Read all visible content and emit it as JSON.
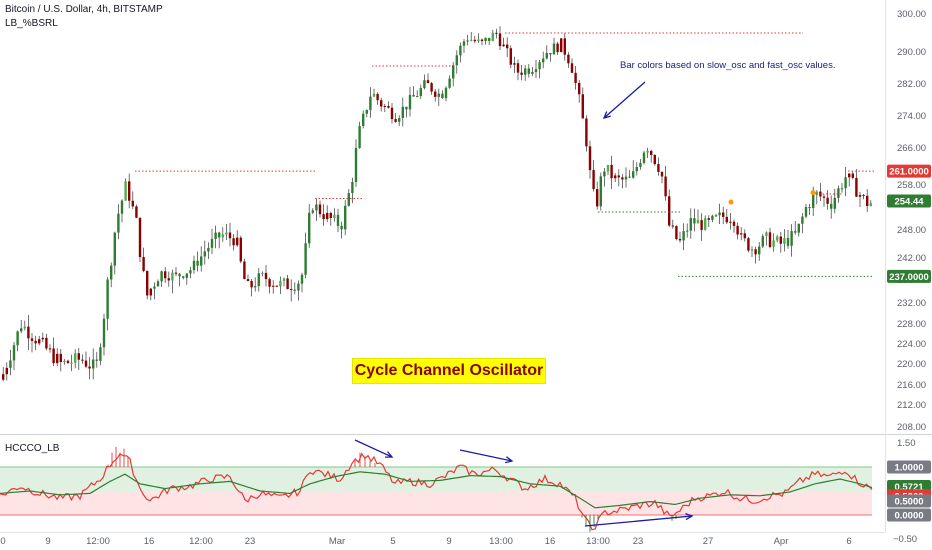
{
  "header": {
    "symbol_line": "Bitcoin / U.S. Dollar, 4h, BITSTAMP",
    "indicator_line": "LB_%BSRL",
    "osc_label": "HCCCO_LB"
  },
  "title_banner": "Cycle Channel Oscillator",
  "annotation": "Bar colors based on slow_osc and fast_osc values.",
  "colors": {
    "up": "#2e7d32",
    "down": "#8b0000",
    "neutral": "#4caf50",
    "red_level": "#e53935",
    "green_level": "#2e7d32",
    "arrow": "#1a1aa6",
    "fast_osc": "#e53935",
    "slow_osc": "#2e7d32",
    "upper_band": "#c8e6c9",
    "lower_band": "#ffcdd2"
  },
  "chart_data": [
    {
      "type": "candlestick",
      "title": "Bitcoin / U.S. Dollar, 4h, BITSTAMP",
      "x_ticks": [
        "9",
        "12:00",
        "16",
        "12:00",
        "23",
        "Mar",
        "5",
        "9",
        "13:00",
        "16",
        "13:00",
        "23",
        "27",
        "Apr",
        "6"
      ],
      "y_ticks": [
        300.0,
        290.0,
        282.0,
        274.0,
        266.0,
        258.0,
        248.0,
        242.0,
        236.0,
        232.0,
        228.0,
        224.0,
        220.0,
        216.0,
        212.0,
        208.0
      ],
      "ylim": [
        207,
        302
      ],
      "price_badges": [
        {
          "label": "261.0000",
          "value": 261.0,
          "color": "#e53935"
        },
        {
          "label": "254.44",
          "value": 254.44,
          "color": "#2e7d32"
        },
        {
          "label": "237.0000",
          "value": 237.0,
          "color": "#2e7d32"
        }
      ],
      "close_path": [
        [
          0,
          217
        ],
        [
          20,
          228
        ],
        [
          40,
          224
        ],
        [
          60,
          220
        ],
        [
          80,
          221
        ],
        [
          95,
          219
        ],
        [
          105,
          233
        ],
        [
          115,
          250
        ],
        [
          125,
          258
        ],
        [
          135,
          250
        ],
        [
          145,
          233
        ],
        [
          160,
          238
        ],
        [
          175,
          237
        ],
        [
          190,
          239
        ],
        [
          205,
          244
        ],
        [
          220,
          247
        ],
        [
          235,
          246
        ],
        [
          245,
          234
        ],
        [
          260,
          237
        ],
        [
          280,
          235
        ],
        [
          300,
          236
        ],
        [
          310,
          254
        ],
        [
          325,
          251
        ],
        [
          340,
          249
        ],
        [
          350,
          258
        ],
        [
          358,
          270
        ],
        [
          370,
          280
        ],
        [
          380,
          277
        ],
        [
          395,
          274
        ],
        [
          410,
          278
        ],
        [
          425,
          282
        ],
        [
          440,
          279
        ],
        [
          455,
          289
        ],
        [
          465,
          294
        ],
        [
          480,
          292
        ],
        [
          495,
          295
        ],
        [
          505,
          290
        ],
        [
          515,
          285
        ],
        [
          530,
          286
        ],
        [
          545,
          290
        ],
        [
          560,
          292
        ],
        [
          570,
          287
        ],
        [
          578,
          278
        ],
        [
          585,
          268
        ],
        [
          590,
          258
        ],
        [
          595,
          253
        ],
        [
          602,
          262
        ],
        [
          615,
          259
        ],
        [
          630,
          259
        ],
        [
          645,
          267
        ],
        [
          660,
          261
        ],
        [
          668,
          249
        ],
        [
          678,
          245
        ],
        [
          690,
          250
        ],
        [
          705,
          249
        ],
        [
          720,
          251
        ],
        [
          732,
          251
        ],
        [
          740,
          246
        ],
        [
          752,
          244
        ],
        [
          765,
          246
        ],
        [
          780,
          245
        ],
        [
          795,
          247
        ],
        [
          805,
          253
        ],
        [
          815,
          256
        ],
        [
          830,
          254
        ],
        [
          845,
          260
        ],
        [
          855,
          257
        ],
        [
          865,
          254
        ],
        [
          872,
          254
        ]
      ],
      "levels": [
        {
          "value": 295.0,
          "x_from": 505,
          "x_to": 803,
          "color": "red"
        },
        {
          "value": 286.5,
          "x_from": 372,
          "x_to": 455,
          "color": "red"
        },
        {
          "value": 261.0,
          "x_from": 135,
          "x_to": 315,
          "color": "red"
        },
        {
          "value": 255.0,
          "x_from": 315,
          "x_to": 362,
          "color": "red"
        },
        {
          "value": 256.0,
          "x_from": 812,
          "x_to": 842,
          "color": "red"
        },
        {
          "value": 261.0,
          "x_from": 848,
          "x_to": 874,
          "color": "red"
        },
        {
          "value": 252.0,
          "x_from": 598,
          "x_to": 680,
          "color": "green"
        },
        {
          "value": 237.0,
          "x_from": 678,
          "x_to": 874,
          "color": "green"
        }
      ]
    },
    {
      "type": "line",
      "title": "HCCCO_LB",
      "y_ticks": [
        1.5,
        1.0,
        0.5,
        0.0,
        -0.5
      ],
      "ylim": [
        -0.6,
        1.6
      ],
      "bands": {
        "upper": [
          0.5,
          1.0
        ],
        "lower": [
          0.0,
          0.5
        ]
      },
      "value_badges": [
        {
          "label": "1.0000",
          "value": 1.0,
          "color": "#787b86"
        },
        {
          "label": "0.5721",
          "value": 0.5721,
          "color": "#2e7d32"
        },
        {
          "label": "0.5260",
          "value": 0.526,
          "color": "#e53935"
        },
        {
          "label": "0.5000",
          "value": 0.5,
          "color": "#787b86"
        },
        {
          "label": "0.0000",
          "value": 0.0,
          "color": "#787b86"
        }
      ],
      "series": [
        {
          "key": "fast_osc",
          "values": [
            [
              0,
              0.4
            ],
            [
              20,
              0.6
            ],
            [
              40,
              0.45
            ],
            [
              60,
              0.35
            ],
            [
              80,
              0.4
            ],
            [
              100,
              0.75
            ],
            [
              110,
              1.05
            ],
            [
              120,
              1.3
            ],
            [
              130,
              1.1
            ],
            [
              140,
              0.55
            ],
            [
              150,
              0.3
            ],
            [
              170,
              0.55
            ],
            [
              190,
              0.6
            ],
            [
              210,
              0.75
            ],
            [
              230,
              0.8
            ],
            [
              245,
              0.3
            ],
            [
              260,
              0.45
            ],
            [
              280,
              0.35
            ],
            [
              300,
              0.5
            ],
            [
              310,
              0.95
            ],
            [
              325,
              0.85
            ],
            [
              340,
              0.75
            ],
            [
              352,
              1.1
            ],
            [
              365,
              1.25
            ],
            [
              380,
              1.05
            ],
            [
              395,
              0.65
            ],
            [
              410,
              0.7
            ],
            [
              430,
              0.65
            ],
            [
              445,
              0.8
            ],
            [
              460,
              1.0
            ],
            [
              475,
              0.85
            ],
            [
              495,
              0.95
            ],
            [
              510,
              0.75
            ],
            [
              525,
              0.55
            ],
            [
              545,
              0.75
            ],
            [
              560,
              0.65
            ],
            [
              575,
              0.35
            ],
            [
              585,
              -0.1
            ],
            [
              592,
              -0.3
            ],
            [
              605,
              0.05
            ],
            [
              620,
              0.1
            ],
            [
              640,
              0.2
            ],
            [
              655,
              0.25
            ],
            [
              670,
              -0.05
            ],
            [
              680,
              0.1
            ],
            [
              695,
              0.35
            ],
            [
              710,
              0.4
            ],
            [
              725,
              0.5
            ],
            [
              740,
              0.35
            ],
            [
              755,
              0.3
            ],
            [
              770,
              0.4
            ],
            [
              785,
              0.45
            ],
            [
              800,
              0.7
            ],
            [
              815,
              0.85
            ],
            [
              830,
              0.8
            ],
            [
              845,
              0.95
            ],
            [
              858,
              0.7
            ],
            [
              872,
              0.53
            ]
          ]
        },
        {
          "key": "slow_osc",
          "values": [
            [
              0,
              0.45
            ],
            [
              30,
              0.5
            ],
            [
              60,
              0.42
            ],
            [
              90,
              0.45
            ],
            [
              110,
              0.7
            ],
            [
              125,
              0.85
            ],
            [
              140,
              0.65
            ],
            [
              165,
              0.55
            ],
            [
              200,
              0.65
            ],
            [
              230,
              0.7
            ],
            [
              260,
              0.5
            ],
            [
              290,
              0.45
            ],
            [
              310,
              0.65
            ],
            [
              335,
              0.8
            ],
            [
              360,
              0.9
            ],
            [
              385,
              0.85
            ],
            [
              410,
              0.7
            ],
            [
              440,
              0.72
            ],
            [
              470,
              0.82
            ],
            [
              500,
              0.8
            ],
            [
              530,
              0.65
            ],
            [
              560,
              0.6
            ],
            [
              580,
              0.35
            ],
            [
              595,
              0.15
            ],
            [
              620,
              0.2
            ],
            [
              650,
              0.28
            ],
            [
              675,
              0.22
            ],
            [
              700,
              0.35
            ],
            [
              730,
              0.42
            ],
            [
              760,
              0.4
            ],
            [
              790,
              0.48
            ],
            [
              815,
              0.65
            ],
            [
              840,
              0.75
            ],
            [
              860,
              0.65
            ],
            [
              872,
              0.57
            ]
          ]
        }
      ]
    }
  ]
}
